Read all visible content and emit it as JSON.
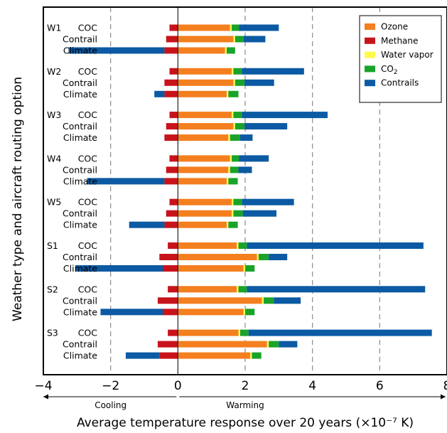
{
  "chart_data": {
    "type": "bar",
    "orientation": "horizontal",
    "stacked": true,
    "xlabel": "Average temperature response over 20 years (×10⁻⁷ K)",
    "ylabel": "Weather type and aircraft routing option",
    "xlim": [
      -4,
      8
    ],
    "xticks": [
      "-4",
      "-2",
      "0",
      "2",
      "4",
      "6",
      "8"
    ],
    "grid": "dashed vertical at -2, 2, 4, 6",
    "legend_position": "top-right",
    "direction_labels": {
      "left": "Cooling",
      "right": "Warming"
    },
    "colors": {
      "Ozone": "#f47f1f",
      "Methane": "#c8131b",
      "Water vapor": "#fff94a",
      "CO2": "#1aa32a",
      "Contrails": "#0b5aa3"
    },
    "legend": [
      "Ozone",
      "Methane",
      "Water vapor",
      "CO2",
      "Contrails"
    ],
    "groups": [
      {
        "weather": "W1",
        "rows": [
          {
            "option": "COC",
            "Methane": -0.25,
            "Ozone": 1.55,
            "Water vapor": 0.05,
            "CO2": 0.22,
            "Contrails": 1.18
          },
          {
            "option": "Contrail",
            "Methane": -0.35,
            "Ozone": 1.65,
            "Water vapor": 0.05,
            "CO2": 0.25,
            "Contrails": 0.65
          },
          {
            "option": "Climate",
            "Methane": -0.4,
            "Ozone": 1.4,
            "Water vapor": 0.05,
            "CO2": 0.25,
            "Contrails": -2.85
          }
        ]
      },
      {
        "weather": "W2",
        "rows": [
          {
            "option": "COC",
            "Methane": -0.25,
            "Ozone": 1.6,
            "Water vapor": 0.05,
            "CO2": 0.25,
            "Contrails": 1.85
          },
          {
            "option": "Contrail",
            "Methane": -0.4,
            "Ozone": 1.65,
            "Water vapor": 0.05,
            "CO2": 0.28,
            "Contrails": 0.88
          },
          {
            "option": "Climate",
            "Methane": -0.4,
            "Ozone": 1.45,
            "Water vapor": 0.05,
            "CO2": 0.3,
            "Contrails": -0.3
          }
        ]
      },
      {
        "weather": "W3",
        "rows": [
          {
            "option": "COC",
            "Methane": -0.25,
            "Ozone": 1.6,
            "Water vapor": 0.05,
            "CO2": 0.25,
            "Contrails": 2.55
          },
          {
            "option": "Contrail",
            "Methane": -0.35,
            "Ozone": 1.65,
            "Water vapor": 0.05,
            "CO2": 0.28,
            "Contrails": 1.27
          },
          {
            "option": "Climate",
            "Methane": -0.4,
            "Ozone": 1.5,
            "Water vapor": 0.05,
            "CO2": 0.3,
            "Contrails": 0.37
          }
        ]
      },
      {
        "weather": "W4",
        "rows": [
          {
            "option": "COC",
            "Methane": -0.25,
            "Ozone": 1.55,
            "Water vapor": 0.05,
            "CO2": 0.22,
            "Contrails": 0.88
          },
          {
            "option": "Contrail",
            "Methane": -0.35,
            "Ozone": 1.5,
            "Water vapor": 0.05,
            "CO2": 0.25,
            "Contrails": 0.4
          },
          {
            "option": "Climate",
            "Methane": -0.4,
            "Ozone": 1.45,
            "Water vapor": 0.05,
            "CO2": 0.28,
            "Contrails": -2.3
          }
        ]
      },
      {
        "weather": "W5",
        "rows": [
          {
            "option": "COC",
            "Methane": -0.25,
            "Ozone": 1.6,
            "Water vapor": 0.05,
            "CO2": 0.25,
            "Contrails": 1.55
          },
          {
            "option": "Contrail",
            "Methane": -0.35,
            "Ozone": 1.6,
            "Water vapor": 0.05,
            "CO2": 0.28,
            "Contrails": 1.0
          },
          {
            "option": "Climate",
            "Methane": -0.4,
            "Ozone": 1.45,
            "Water vapor": 0.05,
            "CO2": 0.28,
            "Contrails": -1.05
          }
        ]
      },
      {
        "weather": "S1",
        "rows": [
          {
            "option": "COC",
            "Methane": -0.3,
            "Ozone": 1.75,
            "Water vapor": 0.05,
            "CO2": 0.25,
            "Contrails": 5.25
          },
          {
            "option": "Contrail",
            "Methane": -0.55,
            "Ozone": 2.35,
            "Water vapor": 0.05,
            "CO2": 0.3,
            "Contrails": 0.55
          },
          {
            "option": "Climate",
            "Methane": -0.45,
            "Ozone": 1.95,
            "Water vapor": 0.05,
            "CO2": 0.28,
            "Contrails": -2.6
          }
        ]
      },
      {
        "weather": "S2",
        "rows": [
          {
            "option": "COC",
            "Methane": -0.3,
            "Ozone": 1.75,
            "Water vapor": 0.05,
            "CO2": 0.25,
            "Contrails": 5.3
          },
          {
            "option": "Contrail",
            "Methane": -0.6,
            "Ozone": 2.5,
            "Water vapor": 0.05,
            "CO2": 0.3,
            "Contrails": 0.8
          },
          {
            "option": "Climate",
            "Methane": -0.45,
            "Ozone": 1.95,
            "Water vapor": 0.05,
            "CO2": 0.28,
            "Contrails": -1.85
          }
        ]
      },
      {
        "weather": "S3",
        "rows": [
          {
            "option": "COC",
            "Methane": -0.3,
            "Ozone": 1.8,
            "Water vapor": 0.05,
            "CO2": 0.25,
            "Contrails": 5.45
          },
          {
            "option": "Contrail",
            "Methane": -0.6,
            "Ozone": 2.65,
            "Water vapor": 0.05,
            "CO2": 0.3,
            "Contrails": 0.55
          },
          {
            "option": "Climate",
            "Methane": -0.55,
            "Ozone": 2.15,
            "Water vapor": 0.05,
            "CO2": 0.28,
            "Contrails": -1.0
          }
        ]
      }
    ]
  }
}
